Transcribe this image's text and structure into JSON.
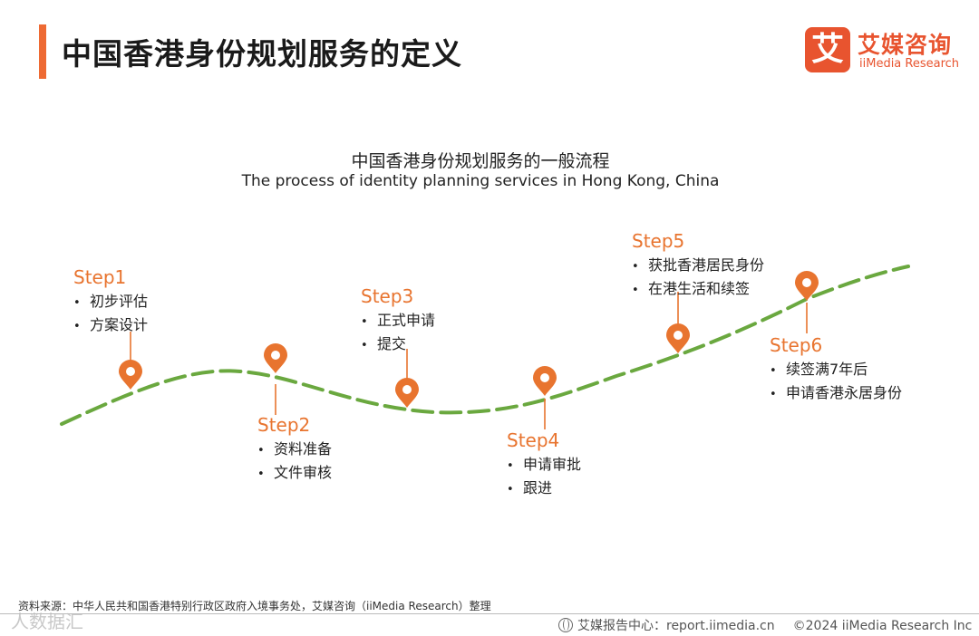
{
  "header": {
    "title": "中国香港身份规划服务的定义",
    "accent_color": "#ee6a33"
  },
  "brand": {
    "mark": "艾",
    "name_cn": "艾媒咨询",
    "name_en": "iiMedia Research",
    "color": "#e8542f"
  },
  "diagram": {
    "title_cn": "中国香港身份规划服务的一般流程",
    "title_en": "The process of identity planning services in Hong Kong, China",
    "curve_color": "#6aa83f",
    "marker_color": "#e8742f",
    "marker_icon": "location-pin-icon",
    "steps": [
      {
        "label": "Step1",
        "items": [
          "初步评估",
          "方案设计"
        ]
      },
      {
        "label": "Step2",
        "items": [
          "资料准备",
          "文件审核"
        ]
      },
      {
        "label": "Step3",
        "items": [
          "正式申请",
          "提交"
        ]
      },
      {
        "label": "Step4",
        "items": [
          "申请审批",
          "跟进"
        ]
      },
      {
        "label": "Step5",
        "items": [
          "获批香港居民身份",
          "在港生活和续签"
        ]
      },
      {
        "label": "Step6",
        "items": [
          "续签满7年后",
          "申请香港永居身份"
        ]
      }
    ]
  },
  "source": "资料来源：中华人民共和国香港特别行政区政府入境事务处，艾媒咨询（iiMedia Research）整理",
  "watermark": "人数据汇",
  "footer": {
    "report_center": "艾媒报告中心：report.iimedia.cn",
    "copyright": "©2024  iiMedia Research  Inc"
  }
}
